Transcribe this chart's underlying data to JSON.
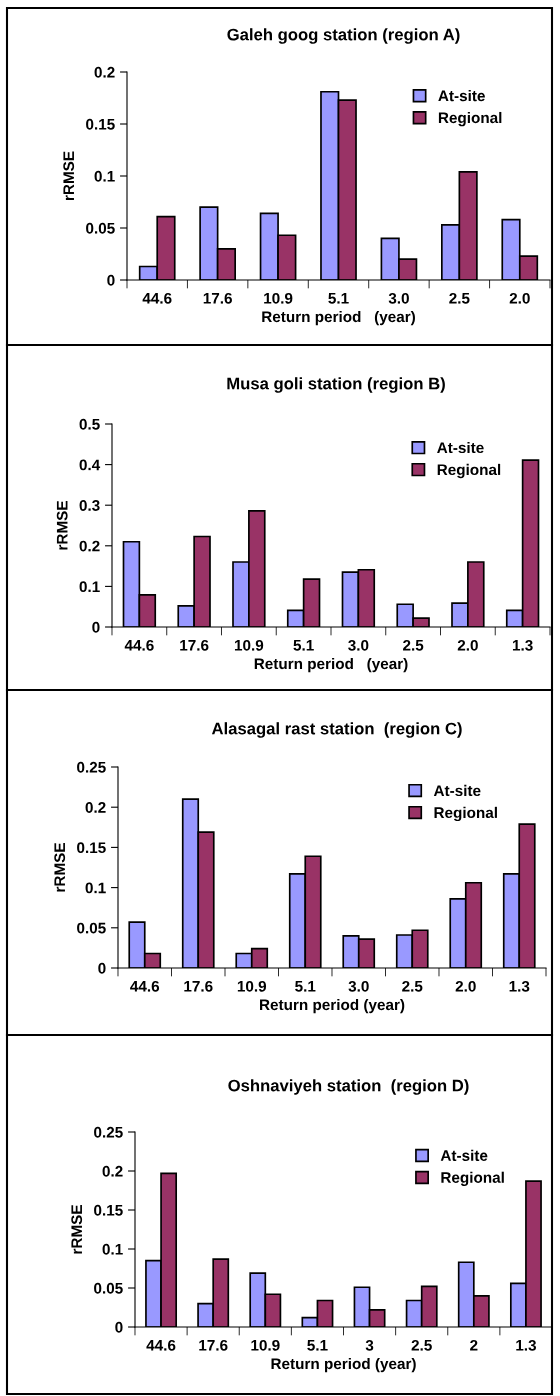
{
  "chart_data": [
    {
      "type": "bar",
      "title": "Galeh goog station (region A)",
      "xlabel": "Return period   (year)",
      "ylabel": "rRMSE",
      "categories": [
        "44.6",
        "17.6",
        "10.9",
        "5.1",
        "3.0",
        "2.5",
        "2.0"
      ],
      "ylim": [
        0,
        0.2
      ],
      "yticks": [
        0,
        0.05,
        0.1,
        0.15,
        0.2
      ],
      "legend": "top right",
      "grid": false,
      "series": [
        {
          "name": "At-site",
          "color": "#9999ff",
          "values": [
            0.013,
            0.07,
            0.064,
            0.181,
            0.04,
            0.053,
            0.058
          ]
        },
        {
          "name": "Regional",
          "color": "#993366",
          "values": [
            0.061,
            0.03,
            0.043,
            0.173,
            0.02,
            0.104,
            0.023
          ]
        }
      ]
    },
    {
      "type": "bar",
      "title": "Musa goli station (region B)",
      "xlabel": "Return period   (year)",
      "ylabel": "rRMSE",
      "categories": [
        "44.6",
        "17.6",
        "10.9",
        "5.1",
        "3.0",
        "2.5",
        "2.0",
        "1.3"
      ],
      "ylim": [
        0,
        0.5
      ],
      "yticks": [
        0,
        0.1,
        0.2,
        0.3,
        0.4,
        0.5
      ],
      "legend": "top right",
      "grid": false,
      "series": [
        {
          "name": "At-site",
          "color": "#9999ff",
          "values": [
            0.21,
            0.052,
            0.16,
            0.041,
            0.135,
            0.056,
            0.059,
            0.041
          ]
        },
        {
          "name": "Regional",
          "color": "#993366",
          "values": [
            0.079,
            0.223,
            0.286,
            0.118,
            0.141,
            0.022,
            0.16,
            0.411
          ]
        }
      ]
    },
    {
      "type": "bar",
      "title": "Alasagal rast station  (region C)",
      "xlabel": "Return period (year)",
      "ylabel": "rRMSE",
      "categories": [
        "44.6",
        "17.6",
        "10.9",
        "5.1",
        "3.0",
        "2.5",
        "2.0",
        "1.3"
      ],
      "ylim": [
        0,
        0.25
      ],
      "yticks": [
        0,
        0.05,
        0.1,
        0.15,
        0.2,
        0.25
      ],
      "legend": "top right",
      "grid": false,
      "series": [
        {
          "name": "At-site",
          "color": "#9999ff",
          "values": [
            0.057,
            0.21,
            0.018,
            0.117,
            0.04,
            0.041,
            0.086,
            0.117
          ]
        },
        {
          "name": "Regional",
          "color": "#993366",
          "values": [
            0.018,
            0.169,
            0.024,
            0.139,
            0.036,
            0.047,
            0.106,
            0.179
          ]
        }
      ]
    },
    {
      "type": "bar",
      "title": "Oshnaviyeh station  (region D)",
      "xlabel": "Return period (year)",
      "ylabel": "rRMSE",
      "categories": [
        "44.6",
        "17.6",
        "10.9",
        "5.1",
        "3",
        "2.5",
        "2",
        "1.3"
      ],
      "ylim": [
        0,
        0.25
      ],
      "yticks": [
        0,
        0.05,
        0.1,
        0.15,
        0.2,
        0.25
      ],
      "legend": "top right",
      "grid": false,
      "series": [
        {
          "name": "At-site",
          "color": "#9999ff",
          "values": [
            0.085,
            0.03,
            0.069,
            0.012,
            0.051,
            0.034,
            0.083,
            0.056
          ]
        },
        {
          "name": "Regional",
          "color": "#993366",
          "values": [
            0.197,
            0.087,
            0.042,
            0.034,
            0.022,
            0.052,
            0.04,
            0.187
          ]
        }
      ]
    }
  ]
}
